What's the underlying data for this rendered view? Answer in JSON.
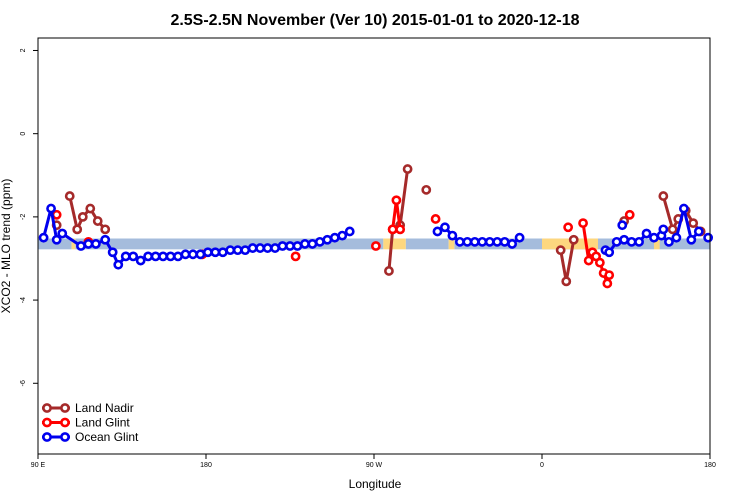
{
  "chart_data": {
    "type": "line",
    "title": "2.5S-2.5N November (Ver 10)   2015-01-01 to 2020-12-18",
    "xlabel": "Longitude",
    "ylabel": "XCO2 - MLO trend (ppm)",
    "xlim": [
      90,
      450
    ],
    "ylim": [
      -7.7,
      2.3
    ],
    "x_ticks": [
      {
        "value": 90,
        "label": "90 E"
      },
      {
        "value": 180,
        "label": "180"
      },
      {
        "value": 270,
        "label": "90 W"
      },
      {
        "value": 360,
        "label": "0"
      },
      {
        "value": 450,
        "label": "180"
      }
    ],
    "y_ticks": [
      {
        "value": 2,
        "label": "2"
      },
      {
        "value": 0,
        "label": "0"
      },
      {
        "value": -2,
        "label": "-2"
      },
      {
        "value": -4,
        "label": "-4"
      },
      {
        "value": -6,
        "label": "-6"
      }
    ],
    "grid": false,
    "legend_position": "bottom-left",
    "bands": [
      {
        "name": "ocean",
        "color": "#a5bcdc",
        "y_top": -2.52,
        "y_bottom": -2.78,
        "ranges": [
          [
            90,
            108
          ],
          [
            110,
            275
          ],
          [
            287,
            310
          ],
          [
            313,
            420
          ],
          [
            423,
            450
          ]
        ]
      },
      {
        "name": "land",
        "color": "#fdd77f",
        "y_top": -2.52,
        "y_bottom": -2.78,
        "ranges": [
          [
            108,
            110
          ],
          [
            275,
            287
          ],
          [
            310,
            313
          ],
          [
            360,
            390
          ],
          [
            420,
            423
          ]
        ]
      }
    ],
    "series": [
      {
        "name": "Land Nadir",
        "color": "#a52a2a",
        "segments": [
          [
            [
              107,
              -1.5
            ],
            [
              111,
              -2.3
            ],
            [
              114,
              -2.0
            ],
            [
              118,
              -1.8
            ],
            [
              122,
              -2.1
            ],
            [
              126,
              -2.3
            ]
          ],
          [
            [
              278,
              -3.3
            ],
            [
              280,
              -2.3
            ],
            [
              284,
              -2.2
            ],
            [
              288,
              -0.85
            ]
          ],
          [
            [
              298,
              -1.35
            ]
          ],
          [
            [
              100,
              -2.2
            ]
          ],
          [
            [
              370,
              -2.8
            ],
            [
              373,
              -3.55
            ],
            [
              377,
              -2.55
            ]
          ],
          [
            [
              404,
              -2.1
            ]
          ],
          [
            [
              425,
              -1.5
            ],
            [
              430,
              -2.3
            ],
            [
              433,
              -2.05
            ],
            [
              437,
              -1.85
            ],
            [
              441,
              -2.15
            ],
            [
              445,
              -2.35
            ]
          ]
        ]
      },
      {
        "name": "Land Glint",
        "color": "#ff0000",
        "segments": [
          [
            [
              100,
              -1.95
            ]
          ],
          [
            [
              117,
              -2.6
            ]
          ],
          [
            [
              178,
              -2.9
            ]
          ],
          [
            [
              228,
              -2.95
            ]
          ],
          [
            [
              271,
              -2.7
            ]
          ],
          [
            [
              280,
              -2.3
            ],
            [
              282,
              -1.6
            ],
            [
              284,
              -2.3
            ]
          ],
          [
            [
              303,
              -2.05
            ]
          ],
          [
            [
              374,
              -2.25
            ]
          ],
          [
            [
              382,
              -2.15
            ],
            [
              385,
              -3.05
            ],
            [
              387,
              -2.85
            ],
            [
              389,
              -2.95
            ],
            [
              391,
              -3.1
            ],
            [
              393,
              -3.35
            ],
            [
              395,
              -3.6
            ],
            [
              396,
              -3.4
            ]
          ],
          [
            [
              407,
              -1.95
            ]
          ]
        ]
      },
      {
        "name": "Ocean Glint",
        "color": "#0000ee",
        "segments": [
          [
            [
              93,
              -2.5
            ],
            [
              97,
              -1.8
            ],
            [
              100,
              -2.55
            ],
            [
              103,
              -2.4
            ],
            [
              113,
              -2.7
            ],
            [
              117,
              -2.65
            ],
            [
              121,
              -2.65
            ],
            [
              126,
              -2.55
            ],
            [
              130,
              -2.85
            ],
            [
              133,
              -3.15
            ],
            [
              137,
              -2.95
            ],
            [
              141,
              -2.95
            ],
            [
              145,
              -3.05
            ],
            [
              149,
              -2.95
            ],
            [
              153,
              -2.95
            ],
            [
              157,
              -2.95
            ],
            [
              161,
              -2.95
            ],
            [
              165,
              -2.95
            ],
            [
              169,
              -2.9
            ],
            [
              173,
              -2.9
            ],
            [
              177,
              -2.9
            ],
            [
              181,
              -2.85
            ],
            [
              185,
              -2.85
            ],
            [
              189,
              -2.85
            ],
            [
              193,
              -2.8
            ],
            [
              197,
              -2.8
            ],
            [
              201,
              -2.8
            ],
            [
              205,
              -2.75
            ],
            [
              209,
              -2.75
            ],
            [
              213,
              -2.75
            ],
            [
              217,
              -2.75
            ],
            [
              221,
              -2.7
            ],
            [
              225,
              -2.7
            ],
            [
              229,
              -2.7
            ],
            [
              233,
              -2.65
            ],
            [
              237,
              -2.65
            ],
            [
              241,
              -2.6
            ],
            [
              245,
              -2.55
            ],
            [
              249,
              -2.5
            ],
            [
              253,
              -2.45
            ],
            [
              257,
              -2.35
            ]
          ],
          [
            [
              304,
              -2.35
            ],
            [
              308,
              -2.25
            ],
            [
              312,
              -2.45
            ],
            [
              316,
              -2.6
            ],
            [
              320,
              -2.6
            ],
            [
              324,
              -2.6
            ],
            [
              328,
              -2.6
            ],
            [
              332,
              -2.6
            ],
            [
              336,
              -2.6
            ],
            [
              340,
              -2.6
            ],
            [
              344,
              -2.65
            ],
            [
              348,
              -2.5
            ]
          ],
          [
            [
              394,
              -2.8
            ],
            [
              396,
              -2.85
            ],
            [
              400,
              -2.6
            ],
            [
              404,
              -2.55
            ],
            [
              408,
              -2.6
            ],
            [
              412,
              -2.6
            ],
            [
              416,
              -2.4
            ],
            [
              420,
              -2.5
            ],
            [
              424,
              -2.45
            ],
            [
              428,
              -2.6
            ],
            [
              432,
              -2.5
            ],
            [
              436,
              -1.8
            ],
            [
              440,
              -2.55
            ],
            [
              444,
              -2.35
            ]
          ],
          [
            [
              449,
              -2.5
            ]
          ],
          [
            [
              403,
              -2.2
            ]
          ],
          [
            [
              425,
              -2.3
            ]
          ]
        ]
      }
    ]
  }
}
